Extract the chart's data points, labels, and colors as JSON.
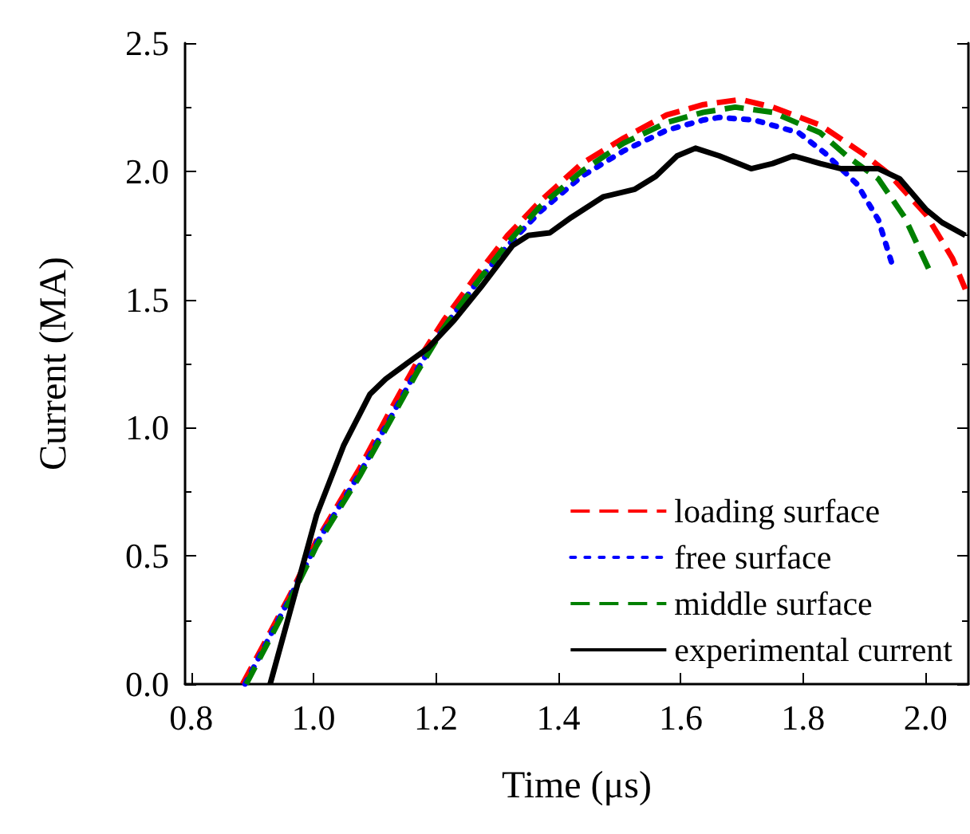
{
  "chart_data": {
    "type": "line",
    "xlabel": "Time (μs)",
    "ylabel": "Current (MA)",
    "xlim": [
      0.79,
      2.07
    ],
    "ylim": [
      0,
      2.5
    ],
    "xticks": [
      {
        "value": 0.8,
        "label": "0.8"
      },
      {
        "value": 1,
        "label": "1.0"
      },
      {
        "value": 1.2,
        "label": "1.2"
      },
      {
        "value": 1.4,
        "label": "1.4"
      },
      {
        "value": 1.6,
        "label": "1.6"
      },
      {
        "value": 1.8,
        "label": "1.8"
      },
      {
        "value": 2,
        "label": "2.0"
      }
    ],
    "yticks": [
      {
        "value": 0,
        "label": "0.0"
      },
      {
        "value": 0.5,
        "label": "0.5"
      },
      {
        "value": 1,
        "label": "1.0"
      },
      {
        "value": 1.5,
        "label": "1.5"
      },
      {
        "value": 2,
        "label": "2.0"
      },
      {
        "value": 2.5,
        "label": "2.5"
      }
    ],
    "grid": false,
    "legend": "bottom right",
    "marker": "none",
    "series": [
      {
        "name": "loading surface",
        "color": "#ff0000",
        "line_style": "dashed",
        "x": [
          0.884,
          0.962,
          1.005,
          1.075,
          1.126,
          1.17,
          1.213,
          1.265,
          1.317,
          1.369,
          1.438,
          1.507,
          1.577,
          1.637,
          1.698,
          1.75,
          1.828,
          1.897,
          1.94,
          2.001,
          2.044,
          2.065
        ],
        "values": [
          0,
          0.35,
          0.56,
          0.84,
          1.07,
          1.26,
          1.42,
          1.59,
          1.75,
          1.88,
          2.03,
          2.13,
          2.22,
          2.26,
          2.28,
          2.25,
          2.18,
          2.07,
          1.99,
          1.83,
          1.66,
          1.54
        ]
      },
      {
        "name": "free surface",
        "color": "#0000ff",
        "line_style": "dotted",
        "x": [
          0.888,
          0.962,
          1.005,
          1.075,
          1.126,
          1.17,
          1.213,
          1.265,
          1.317,
          1.369,
          1.438,
          1.507,
          1.577,
          1.637,
          1.663,
          1.72,
          1.793,
          1.836,
          1.888,
          1.923,
          1.945
        ],
        "values": [
          0,
          0.34,
          0.55,
          0.82,
          1.04,
          1.23,
          1.39,
          1.56,
          1.71,
          1.84,
          1.98,
          2.08,
          2.16,
          2.2,
          2.21,
          2.2,
          2.15,
          2.07,
          1.95,
          1.81,
          1.64
        ]
      },
      {
        "name": "middle surface",
        "color": "#008000",
        "line_style": "dashed",
        "x": [
          0.89,
          0.962,
          1.005,
          1.075,
          1.126,
          1.17,
          1.213,
          1.265,
          1.317,
          1.369,
          1.438,
          1.507,
          1.577,
          1.637,
          1.689,
          1.75,
          1.828,
          1.871,
          1.923,
          1.966,
          2.005
        ],
        "values": [
          0,
          0.33,
          0.54,
          0.81,
          1.03,
          1.22,
          1.39,
          1.56,
          1.72,
          1.86,
          2.0,
          2.11,
          2.19,
          2.23,
          2.25,
          2.23,
          2.15,
          2.06,
          1.97,
          1.82,
          1.62
        ]
      },
      {
        "name": "experimental current",
        "color": "#000000",
        "line_style": "solid",
        "x": [
          0.929,
          1.005,
          1.049,
          1.092,
          1.118,
          1.152,
          1.187,
          1.23,
          1.274,
          1.325,
          1.351,
          1.386,
          1.421,
          1.473,
          1.525,
          1.559,
          1.594,
          1.624,
          1.663,
          1.715,
          1.75,
          1.784,
          1.828,
          1.862,
          1.923,
          1.958,
          2.001,
          2.027,
          2.065
        ],
        "values": [
          0,
          0.66,
          0.93,
          1.13,
          1.19,
          1.25,
          1.31,
          1.42,
          1.55,
          1.71,
          1.75,
          1.76,
          1.82,
          1.9,
          1.93,
          1.98,
          2.06,
          2.09,
          2.06,
          2.01,
          2.03,
          2.06,
          2.03,
          2.01,
          2.01,
          1.97,
          1.85,
          1.8,
          1.75
        ]
      }
    ]
  }
}
